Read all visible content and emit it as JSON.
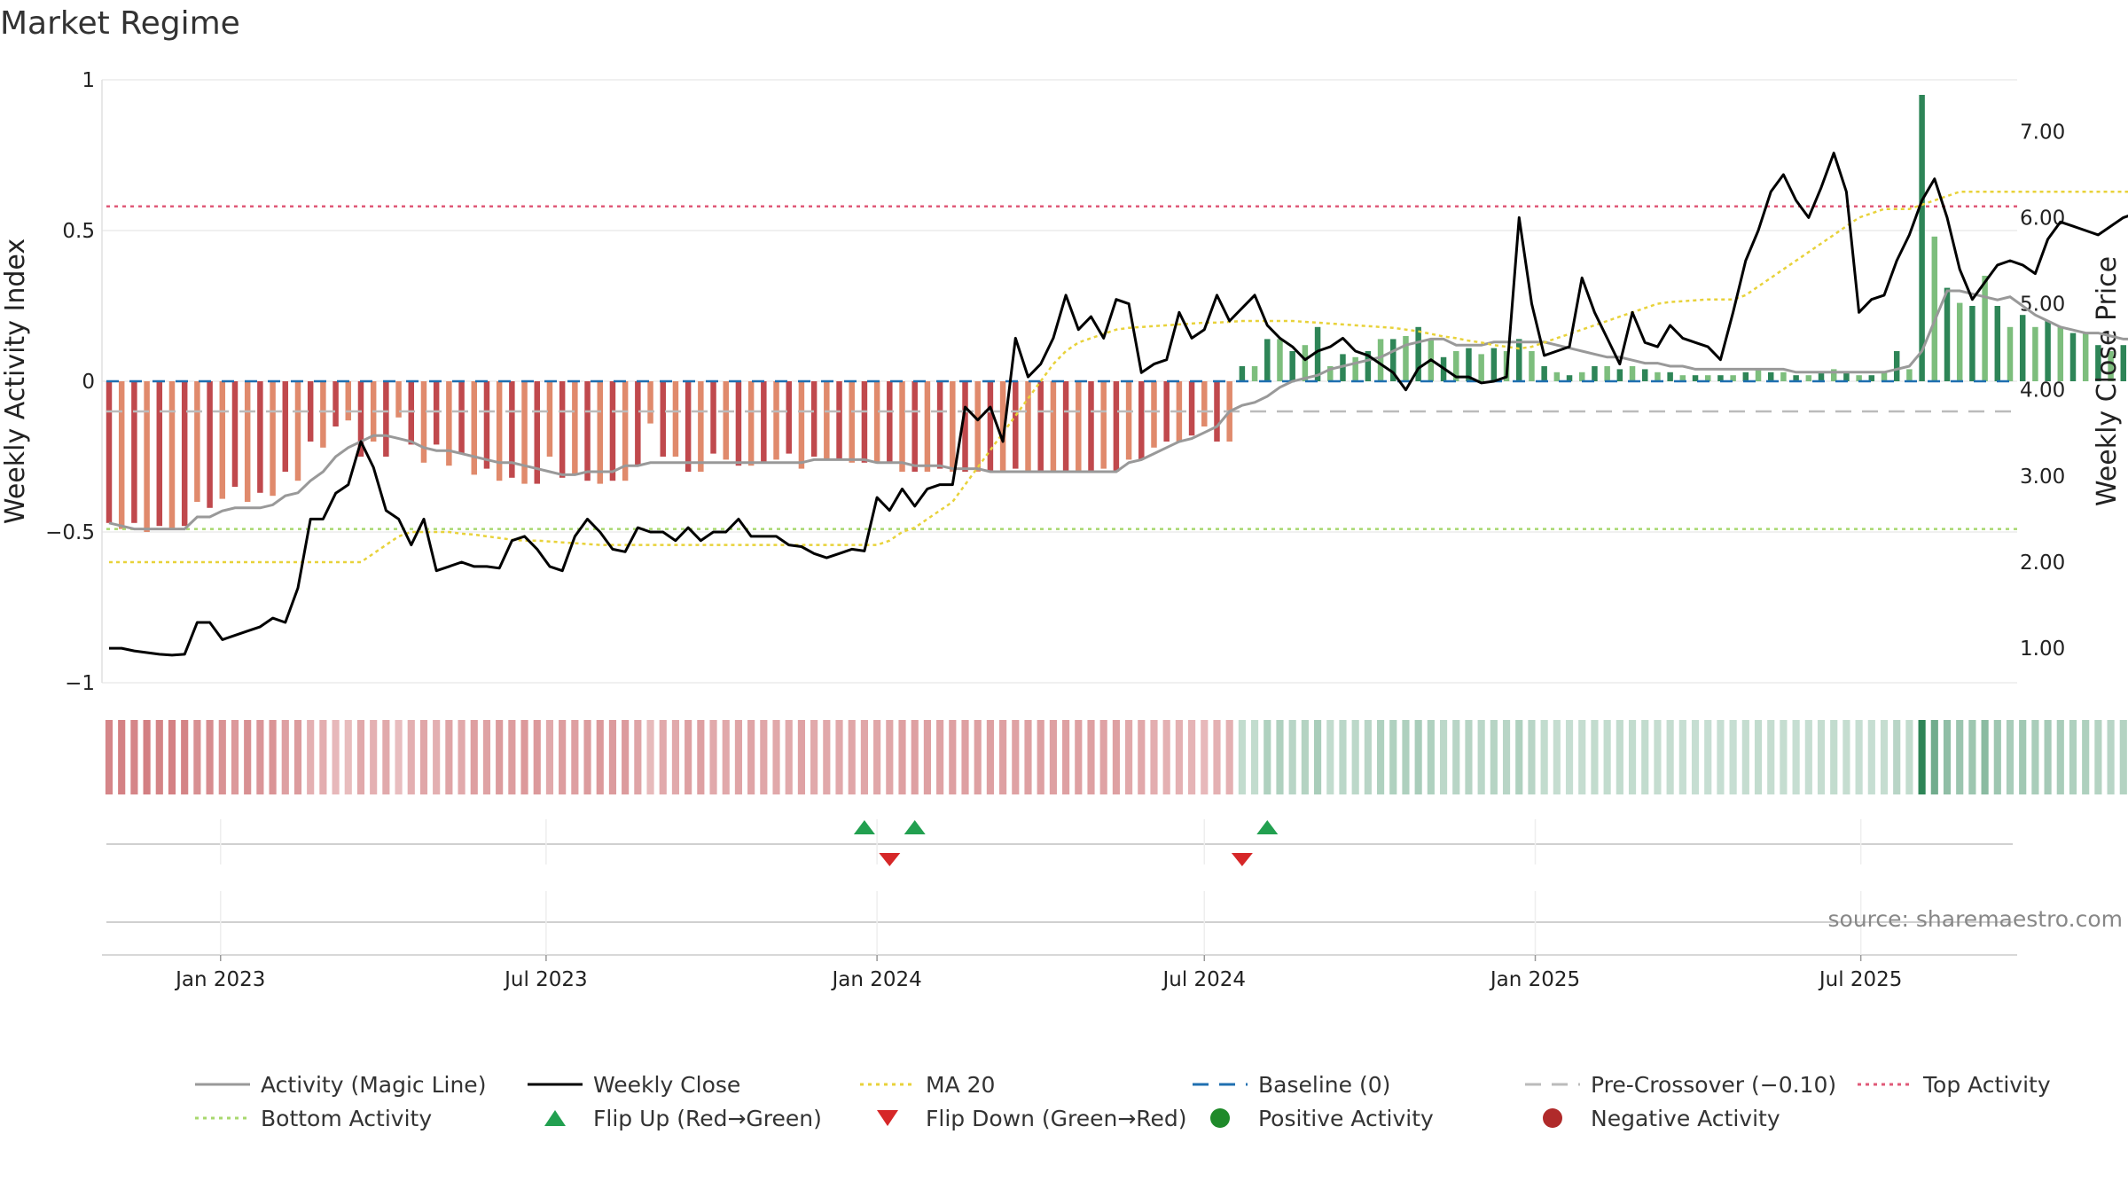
{
  "title": "Market Regime",
  "source": "source: sharemaestro.com",
  "colors": {
    "neg_dark": "#c0494d",
    "neg_light": "#e08a6c",
    "pos_dark": "#2e8557",
    "pos_light": "#7dbe7d",
    "magic": "#999999",
    "close": "#000000",
    "ma": "#e8d23a",
    "baseline": "#1f6fb0",
    "pre": "#bbbbbb",
    "top": "#e05a78",
    "bottom": "#a8d86e",
    "flip_up": "#22a050",
    "flip_down": "#d62728",
    "pos_dot": "#1f8a2a",
    "neg_dot": "#b02a2a"
  },
  "chart_data": {
    "type": "bar",
    "x_axis": {
      "start": "2022-10-31",
      "end": "2025-09-22",
      "tick_labels": [
        "Jan 2023",
        "Jul 2023",
        "Jan 2024",
        "Jul 2024",
        "Jan 2025",
        "Jul 2025"
      ],
      "tick_dates": [
        "2023-01-01",
        "2023-07-01",
        "2024-01-01",
        "2024-07-01",
        "2025-01-01",
        "2025-07-01"
      ]
    },
    "y_left": {
      "label": "Weekly Activity Index",
      "range": [
        -1,
        1
      ],
      "ticks": [
        1,
        0.5,
        0,
        -0.5,
        -1
      ],
      "tick_labels": [
        "1",
        "0.5",
        "0",
        "−0.5",
        "−1"
      ]
    },
    "y_right": {
      "label": "Weekly Close Price",
      "range": [
        0.6,
        7.6
      ],
      "ticks": [
        7,
        6,
        5,
        4,
        3,
        2,
        1
      ],
      "tick_labels": [
        "7.00",
        "6.00",
        "5.00",
        "4.00",
        "3.00",
        "2.00",
        "1.00"
      ]
    },
    "reference_lines": {
      "top": 0.58,
      "bottom": -0.49,
      "baseline": 0,
      "pre_crossover": -0.1
    },
    "weekly_activity": [
      -0.47,
      -0.49,
      -0.47,
      -0.5,
      -0.48,
      -0.49,
      -0.48,
      -0.4,
      -0.42,
      -0.39,
      -0.35,
      -0.4,
      -0.37,
      -0.38,
      -0.3,
      -0.33,
      -0.2,
      -0.22,
      -0.15,
      -0.13,
      -0.25,
      -0.2,
      -0.25,
      -0.12,
      -0.21,
      -0.27,
      -0.21,
      -0.28,
      -0.24,
      -0.31,
      -0.29,
      -0.33,
      -0.32,
      -0.34,
      -0.34,
      -0.25,
      -0.32,
      -0.31,
      -0.33,
      -0.34,
      -0.33,
      -0.33,
      -0.28,
      -0.14,
      -0.25,
      -0.25,
      -0.3,
      -0.3,
      -0.24,
      -0.26,
      -0.28,
      -0.28,
      -0.27,
      -0.26,
      -0.24,
      -0.29,
      -0.25,
      -0.26,
      -0.26,
      -0.27,
      -0.27,
      -0.27,
      -0.27,
      -0.3,
      -0.3,
      -0.3,
      -0.29,
      -0.3,
      -0.3,
      -0.3,
      -0.3,
      -0.3,
      -0.29,
      -0.3,
      -0.3,
      -0.3,
      -0.3,
      -0.3,
      -0.3,
      -0.29,
      -0.3,
      -0.26,
      -0.26,
      -0.22,
      -0.2,
      -0.2,
      -0.18,
      -0.15,
      -0.2,
      -0.2,
      0.05,
      0.05,
      0.14,
      0.14,
      0.1,
      0.12,
      0.18,
      0.05,
      0.09,
      0.08,
      0.1,
      0.14,
      0.14,
      0.15,
      0.18,
      0.14,
      0.08,
      0.1,
      0.11,
      0.09,
      0.11,
      0.1,
      0.14,
      0.1,
      0.05,
      0.03,
      0.02,
      0.03,
      0.05,
      0.05,
      0.04,
      0.05,
      0.04,
      0.03,
      0.03,
      0.02,
      0.02,
      0.02,
      0.02,
      0.02,
      0.03,
      0.04,
      0.03,
      0.03,
      0.02,
      0.02,
      0.03,
      0.04,
      0.03,
      0.02,
      0.02,
      0.03,
      0.1,
      0.04,
      0.95,
      0.48,
      0.31,
      0.26,
      0.25,
      0.35,
      0.25,
      0.18,
      0.22,
      0.18,
      0.2,
      0.18,
      0.16,
      0.16,
      0.12,
      0.1,
      0.12,
      0.12,
      0.1,
      0.09,
      0.08,
      0.26,
      0.29,
      0.33,
      0.36,
      0.45,
      0.55,
      0.45,
      0.4,
      0.54,
      0.53,
      0.55,
      0.52,
      0.45,
      0.38,
      0.22,
      0.34,
      0.33,
      0.34,
      0.3,
      0.35,
      0.48,
      0.36,
      0.31,
      0.26,
      0.32,
      0.33,
      0.3,
      0.31,
      0.3,
      0.3,
      0.26,
      0.21,
      0.2,
      0.23,
      0.26,
      0.21,
      0.2,
      0.24,
      0.25,
      0.24
    ],
    "activity_magic_line": [
      -0.47,
      -0.48,
      -0.49,
      -0.49,
      -0.49,
      -0.49,
      -0.49,
      -0.45,
      -0.45,
      -0.43,
      -0.42,
      -0.42,
      -0.42,
      -0.41,
      -0.38,
      -0.37,
      -0.33,
      -0.3,
      -0.25,
      -0.22,
      -0.2,
      -0.18,
      -0.18,
      -0.19,
      -0.2,
      -0.22,
      -0.23,
      -0.23,
      -0.24,
      -0.25,
      -0.26,
      -0.27,
      -0.27,
      -0.28,
      -0.29,
      -0.3,
      -0.31,
      -0.31,
      -0.3,
      -0.3,
      -0.3,
      -0.28,
      -0.28,
      -0.27,
      -0.27,
      -0.27,
      -0.27,
      -0.27,
      -0.27,
      -0.27,
      -0.27,
      -0.27,
      -0.27,
      -0.27,
      -0.27,
      -0.27,
      -0.26,
      -0.26,
      -0.26,
      -0.26,
      -0.26,
      -0.27,
      -0.27,
      -0.27,
      -0.28,
      -0.28,
      -0.28,
      -0.29,
      -0.29,
      -0.29,
      -0.3,
      -0.3,
      -0.3,
      -0.3,
      -0.3,
      -0.3,
      -0.3,
      -0.3,
      -0.3,
      -0.3,
      -0.3,
      -0.27,
      -0.26,
      -0.24,
      -0.22,
      -0.2,
      -0.19,
      -0.17,
      -0.15,
      -0.1,
      -0.08,
      -0.07,
      -0.05,
      -0.02,
      0.0,
      0.01,
      0.02,
      0.04,
      0.05,
      0.06,
      0.07,
      0.08,
      0.1,
      0.12,
      0.13,
      0.14,
      0.14,
      0.12,
      0.12,
      0.12,
      0.13,
      0.13,
      0.13,
      0.13,
      0.13,
      0.12,
      0.11,
      0.1,
      0.09,
      0.08,
      0.08,
      0.07,
      0.06,
      0.06,
      0.05,
      0.05,
      0.04,
      0.04,
      0.04,
      0.04,
      0.04,
      0.04,
      0.04,
      0.04,
      0.03,
      0.03,
      0.03,
      0.03,
      0.03,
      0.03,
      0.03,
      0.03,
      0.04,
      0.05,
      0.1,
      0.2,
      0.3,
      0.3,
      0.29,
      0.28,
      0.27,
      0.28,
      0.25,
      0.22,
      0.2,
      0.18,
      0.17,
      0.16,
      0.16,
      0.15,
      0.14,
      0.14,
      0.13,
      0.13,
      0.12,
      0.15,
      0.18,
      0.21,
      0.25,
      0.3,
      0.35,
      0.36,
      0.37,
      0.4,
      0.44,
      0.45,
      0.46,
      0.45,
      0.42,
      0.38,
      0.37,
      0.37,
      0.36,
      0.35,
      0.35,
      0.36,
      0.4,
      0.38,
      0.36,
      0.35,
      0.34,
      0.33,
      0.33,
      0.32,
      0.32,
      0.3,
      0.28,
      0.27,
      0.26,
      0.26,
      0.25,
      0.25,
      0.24,
      0.24,
      0.24
    ],
    "weekly_close": [
      1.0,
      1.0,
      0.97,
      0.95,
      0.93,
      0.92,
      0.93,
      1.3,
      1.3,
      1.1,
      1.15,
      1.2,
      1.25,
      1.35,
      1.3,
      1.7,
      2.5,
      2.5,
      2.8,
      2.9,
      3.4,
      3.1,
      2.6,
      2.5,
      2.2,
      2.5,
      1.9,
      1.95,
      2.0,
      1.95,
      1.95,
      1.93,
      2.25,
      2.3,
      2.15,
      1.95,
      1.9,
      2.3,
      2.5,
      2.35,
      2.15,
      2.12,
      2.4,
      2.35,
      2.35,
      2.25,
      2.4,
      2.25,
      2.35,
      2.35,
      2.5,
      2.3,
      2.3,
      2.3,
      2.2,
      2.18,
      2.1,
      2.05,
      2.1,
      2.15,
      2.13,
      2.75,
      2.6,
      2.85,
      2.65,
      2.85,
      2.9,
      2.9,
      3.8,
      3.65,
      3.8,
      3.4,
      4.6,
      4.15,
      4.3,
      4.6,
      5.1,
      4.7,
      4.85,
      4.6,
      5.05,
      5.0,
      4.2,
      4.3,
      4.35,
      4.9,
      4.6,
      4.7,
      5.1,
      4.8,
      4.95,
      5.1,
      4.75,
      4.6,
      4.5,
      4.35,
      4.45,
      4.5,
      4.6,
      4.45,
      4.4,
      4.3,
      4.2,
      4.0,
      4.25,
      4.35,
      4.25,
      4.15,
      4.15,
      4.08,
      4.1,
      4.15,
      6.0,
      5.0,
      4.4,
      4.45,
      4.5,
      5.3,
      4.9,
      4.6,
      4.3,
      4.9,
      4.55,
      4.5,
      4.75,
      4.6,
      4.55,
      4.5,
      4.35,
      4.9,
      5.5,
      5.85,
      6.3,
      6.5,
      6.2,
      6.0,
      6.35,
      6.75,
      6.3,
      4.9,
      5.05,
      5.1,
      5.5,
      5.8,
      6.2,
      6.45,
      6.0,
      5.4,
      5.05,
      5.25,
      5.45,
      5.5,
      5.45,
      5.35,
      5.75,
      5.95,
      5.9,
      5.85,
      5.8,
      5.9,
      6.0,
      6.05,
      5.6,
      5.35,
      5.4,
      5.45,
      5.55,
      5.5,
      5.45,
      5.4,
      5.35,
      5.45,
      5.55,
      5.65,
      6.2,
      6.1,
      5.95,
      6.05,
      6.3,
      6.0,
      5.85,
      5.8,
      5.9,
      5.85,
      5.8,
      6.1,
      6.2,
      5.95,
      5.7,
      5.75,
      5.9,
      5.85,
      5.8,
      5.75,
      5.8,
      5.85,
      5.8,
      5.75,
      5.8,
      5.85,
      5.95,
      5.95
    ],
    "ma20_close": [
      2.0,
      2.0,
      2.0,
      2.0,
      2.0,
      2.0,
      2.0,
      2.0,
      2.0,
      2.0,
      2.0,
      2.0,
      2.0,
      2.0,
      2.0,
      2.0,
      2.0,
      2.0,
      2.0,
      2.0,
      2.0,
      2.1,
      2.2,
      2.3,
      2.35,
      2.35,
      2.35,
      2.35,
      2.33,
      2.32,
      2.3,
      2.28,
      2.26,
      2.25,
      2.25,
      2.24,
      2.23,
      2.22,
      2.21,
      2.2,
      2.2,
      2.2,
      2.2,
      2.2,
      2.2,
      2.2,
      2.2,
      2.2,
      2.2,
      2.2,
      2.2,
      2.2,
      2.2,
      2.2,
      2.2,
      2.2,
      2.2,
      2.2,
      2.2,
      2.2,
      2.2,
      2.2,
      2.25,
      2.35,
      2.4,
      2.5,
      2.6,
      2.7,
      2.9,
      3.1,
      3.3,
      3.5,
      3.7,
      3.9,
      4.1,
      4.3,
      4.45,
      4.55,
      4.6,
      4.65,
      4.7,
      4.72,
      4.73,
      4.74,
      4.75,
      4.76,
      4.77,
      4.78,
      4.78,
      4.79,
      4.8,
      4.8,
      4.8,
      4.8,
      4.8,
      4.79,
      4.78,
      4.77,
      4.76,
      4.75,
      4.74,
      4.73,
      4.72,
      4.7,
      4.68,
      4.65,
      4.62,
      4.6,
      4.57,
      4.55,
      4.52,
      4.5,
      4.48,
      4.5,
      4.55,
      4.6,
      4.65,
      4.7,
      4.75,
      4.8,
      4.85,
      4.9,
      4.95,
      5.0,
      5.02,
      5.03,
      5.04,
      5.05,
      5.05,
      5.05,
      5.1,
      5.2,
      5.3,
      5.4,
      5.5,
      5.6,
      5.7,
      5.8,
      5.9,
      6.0,
      6.05,
      6.1,
      6.1,
      6.1,
      6.15,
      6.2,
      6.25,
      6.3,
      6.3,
      6.3,
      6.3,
      6.3,
      6.3,
      6.3,
      6.3,
      6.3,
      6.3,
      6.3,
      6.3,
      6.3,
      6.3,
      6.3,
      6.3,
      6.3,
      6.3,
      6.3,
      6.3,
      6.3,
      6.3,
      6.3,
      6.3,
      6.3,
      6.3,
      6.3,
      6.3,
      6.3,
      6.3,
      6.3,
      6.3,
      6.25,
      6.2,
      6.15,
      6.1,
      6.05,
      6.0,
      5.98,
      5.97,
      5.96,
      5.95,
      5.95,
      5.95,
      5.95,
      5.95,
      5.95,
      5.95,
      5.95,
      5.95,
      5.95,
      5.95,
      5.95,
      5.95,
      5.95,
      5.95,
      5.95
    ],
    "flips": [
      {
        "date": "2023-12-25",
        "type": "up"
      },
      {
        "date": "2024-01-08",
        "type": "down"
      },
      {
        "date": "2024-01-22",
        "type": "up"
      },
      {
        "date": "2024-07-22",
        "type": "down"
      },
      {
        "date": "2024-08-05",
        "type": "up"
      }
    ],
    "legend": [
      {
        "key": "magic",
        "label": "Activity (Magic Line)",
        "style": "solid"
      },
      {
        "key": "close",
        "label": "Weekly Close",
        "style": "solid"
      },
      {
        "key": "ma",
        "label": "MA 20",
        "style": "dotted"
      },
      {
        "key": "baseline",
        "label": "Baseline (0)",
        "style": "dashed"
      },
      {
        "key": "pre",
        "label": "Pre-Crossover (−0.10)",
        "style": "dashed"
      },
      {
        "key": "top",
        "label": "Top Activity",
        "style": "dotted"
      },
      {
        "key": "bottom",
        "label": "Bottom Activity",
        "style": "dotted"
      },
      {
        "key": "flip_up",
        "label": "Flip Up (Red→Green)",
        "style": "tri-up"
      },
      {
        "key": "flip_down",
        "label": "Flip Down (Green→Red)",
        "style": "tri-down"
      },
      {
        "key": "pos_dot",
        "label": "Positive Activity",
        "style": "dot"
      },
      {
        "key": "neg_dot",
        "label": "Negative Activity",
        "style": "dot"
      }
    ]
  }
}
